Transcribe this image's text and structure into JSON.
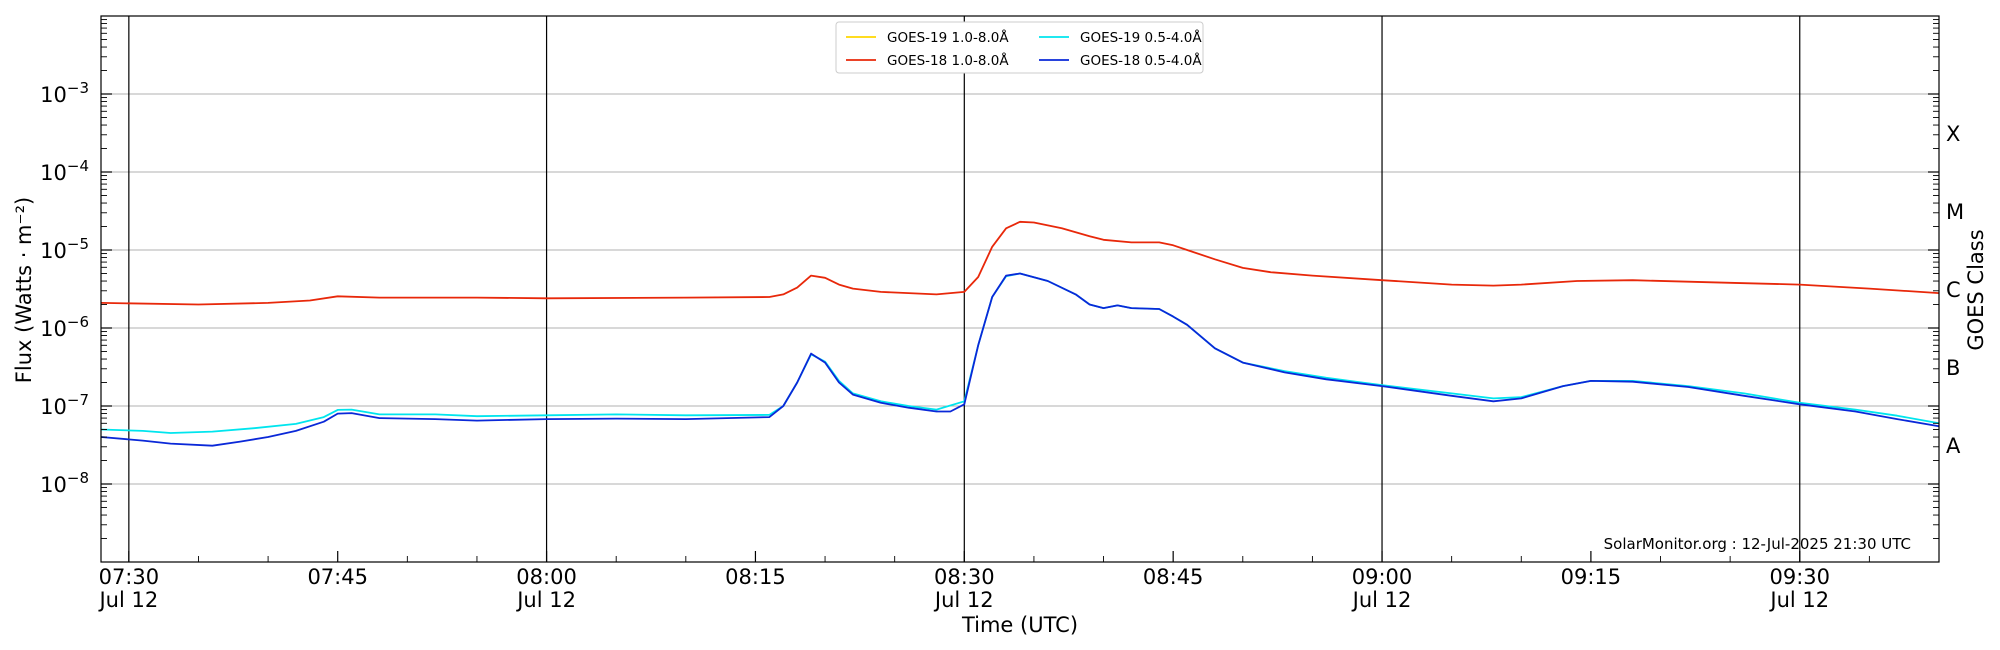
{
  "chart_data": {
    "type": "line",
    "xlabel": "Time (UTC)",
    "ylabel": "Flux (Watts · m⁻²)",
    "ylabel_right": "GOES Class",
    "scale_y": "log",
    "ylim": [
      1e-09,
      0.01
    ],
    "xlim": [
      "07:28",
      "09:40"
    ],
    "x_ticks": [
      {
        "time": "07:30",
        "label": "07:30",
        "date": "Jul 12"
      },
      {
        "time": "07:45",
        "label": "07:45",
        "date": ""
      },
      {
        "time": "08:00",
        "label": "08:00",
        "date": "Jul 12"
      },
      {
        "time": "08:15",
        "label": "08:15",
        "date": ""
      },
      {
        "time": "08:30",
        "label": "08:30",
        "date": "Jul 12"
      },
      {
        "time": "08:45",
        "label": "08:45",
        "date": ""
      },
      {
        "time": "09:00",
        "label": "09:00",
        "date": "Jul 12"
      },
      {
        "time": "09:15",
        "label": "09:15",
        "date": ""
      },
      {
        "time": "09:30",
        "label": "09:30",
        "date": "Jul 12"
      }
    ],
    "y_ticks": [
      {
        "value": 1e-08,
        "base": "10",
        "exp": "−8"
      },
      {
        "value": 1e-07,
        "base": "10",
        "exp": "−7"
      },
      {
        "value": 1e-06,
        "base": "10",
        "exp": "−6"
      },
      {
        "value": 1e-05,
        "base": "10",
        "exp": "−5"
      },
      {
        "value": 0.0001,
        "base": "10",
        "exp": "−4"
      },
      {
        "value": 0.001,
        "base": "10",
        "exp": "−3"
      }
    ],
    "goes_classes": [
      {
        "label": "A",
        "value": 3.16e-08
      },
      {
        "label": "B",
        "value": 3.16e-07
      },
      {
        "label": "C",
        "value": 3.16e-06
      },
      {
        "label": "M",
        "value": 3.16e-05
      },
      {
        "label": "X",
        "value": 0.000316
      }
    ],
    "grid": true,
    "legend_position": "top-center",
    "legend": [
      {
        "name": "GOES-19 1.0-8.0Å",
        "color": "#ffd700"
      },
      {
        "name": "GOES-18 1.0-8.0Å",
        "color": "#e8280a"
      },
      {
        "name": "GOES-19 0.5-4.0Å",
        "color": "#00e5ee"
      },
      {
        "name": "GOES-18 0.5-4.0Å",
        "color": "#0a28d8"
      }
    ],
    "series": [
      {
        "name": "GOES-19 1.0-8.0Å",
        "color": "#ffd700",
        "points": []
      },
      {
        "name": "GOES-18 1.0-8.0Å",
        "color": "#e8280a",
        "points": [
          [
            "07:28",
            2.1e-06
          ],
          [
            "07:35",
            2e-06
          ],
          [
            "07:40",
            2.1e-06
          ],
          [
            "07:43",
            2.25e-06
          ],
          [
            "07:45",
            2.55e-06
          ],
          [
            "07:48",
            2.45e-06
          ],
          [
            "07:55",
            2.45e-06
          ],
          [
            "08:00",
            2.4e-06
          ],
          [
            "08:10",
            2.45e-06
          ],
          [
            "08:16",
            2.5e-06
          ],
          [
            "08:17",
            2.7e-06
          ],
          [
            "08:18",
            3.3e-06
          ],
          [
            "08:19",
            4.7e-06
          ],
          [
            "08:20",
            4.4e-06
          ],
          [
            "08:21",
            3.6e-06
          ],
          [
            "08:22",
            3.2e-06
          ],
          [
            "08:24",
            2.9e-06
          ],
          [
            "08:26",
            2.8e-06
          ],
          [
            "08:28",
            2.7e-06
          ],
          [
            "08:30",
            2.9e-06
          ],
          [
            "08:31",
            4.5e-06
          ],
          [
            "08:32",
            1.1e-05
          ],
          [
            "08:33",
            1.9e-05
          ],
          [
            "08:34",
            2.3e-05
          ],
          [
            "08:35",
            2.25e-05
          ],
          [
            "08:37",
            1.9e-05
          ],
          [
            "08:39",
            1.5e-05
          ],
          [
            "08:40",
            1.35e-05
          ],
          [
            "08:42",
            1.25e-05
          ],
          [
            "08:44",
            1.25e-05
          ],
          [
            "08:45",
            1.15e-05
          ],
          [
            "08:46",
            1e-05
          ],
          [
            "08:48",
            7.6e-06
          ],
          [
            "08:50",
            5.9e-06
          ],
          [
            "08:52",
            5.2e-06
          ],
          [
            "08:55",
            4.7e-06
          ],
          [
            "09:00",
            4.1e-06
          ],
          [
            "09:05",
            3.6e-06
          ],
          [
            "09:08",
            3.5e-06
          ],
          [
            "09:10",
            3.6e-06
          ],
          [
            "09:14",
            4e-06
          ],
          [
            "09:18",
            4.1e-06
          ],
          [
            "09:25",
            3.8e-06
          ],
          [
            "09:30",
            3.6e-06
          ],
          [
            "09:35",
            3.2e-06
          ],
          [
            "09:40",
            2.8e-06
          ]
        ]
      },
      {
        "name": "GOES-19 0.5-4.0Å",
        "color": "#00e5ee",
        "points": [
          [
            "07:28",
            5e-08
          ],
          [
            "07:31",
            4.8e-08
          ],
          [
            "07:33",
            4.5e-08
          ],
          [
            "07:36",
            4.7e-08
          ],
          [
            "07:39",
            5.2e-08
          ],
          [
            "07:42",
            5.9e-08
          ],
          [
            "07:44",
            7.2e-08
          ],
          [
            "07:45",
            8.9e-08
          ],
          [
            "07:46",
            9e-08
          ],
          [
            "07:48",
            7.8e-08
          ],
          [
            "07:52",
            7.8e-08
          ],
          [
            "07:55",
            7.4e-08
          ],
          [
            "08:00",
            7.6e-08
          ],
          [
            "08:05",
            7.8e-08
          ],
          [
            "08:10",
            7.6e-08
          ],
          [
            "08:16",
            7.7e-08
          ],
          [
            "08:17",
            1e-07
          ],
          [
            "08:18",
            2e-07
          ],
          [
            "08:19",
            4.6e-07
          ],
          [
            "08:20",
            3.7e-07
          ],
          [
            "08:21",
            2.1e-07
          ],
          [
            "08:22",
            1.45e-07
          ],
          [
            "08:24",
            1.15e-07
          ],
          [
            "08:26",
            1e-07
          ],
          [
            "08:28",
            9e-08
          ],
          [
            "08:30",
            1.15e-07
          ],
          [
            "08:31",
            6e-07
          ],
          [
            "08:32",
            2.5e-06
          ],
          [
            "08:33",
            4.6e-06
          ],
          [
            "08:34",
            5e-06
          ],
          [
            "08:36",
            4e-06
          ],
          [
            "08:38",
            2.7e-06
          ],
          [
            "08:39",
            2e-06
          ],
          [
            "08:40",
            1.8e-06
          ],
          [
            "08:41",
            1.95e-06
          ],
          [
            "08:42",
            1.8e-06
          ],
          [
            "08:44",
            1.75e-06
          ],
          [
            "08:45",
            1.4e-06
          ],
          [
            "08:46",
            1.1e-06
          ],
          [
            "08:48",
            5.5e-07
          ],
          [
            "08:50",
            3.6e-07
          ],
          [
            "08:53",
            2.8e-07
          ],
          [
            "08:56",
            2.3e-07
          ],
          [
            "09:00",
            1.85e-07
          ],
          [
            "09:05",
            1.45e-07
          ],
          [
            "09:08",
            1.25e-07
          ],
          [
            "09:10",
            1.3e-07
          ],
          [
            "09:13",
            1.8e-07
          ],
          [
            "09:15",
            2.1e-07
          ],
          [
            "09:18",
            2.1e-07
          ],
          [
            "09:22",
            1.8e-07
          ],
          [
            "09:26",
            1.45e-07
          ],
          [
            "09:30",
            1.1e-07
          ],
          [
            "09:34",
            9e-08
          ],
          [
            "09:37",
            7.5e-08
          ],
          [
            "09:40",
            6e-08
          ]
        ]
      },
      {
        "name": "GOES-18 0.5-4.0Å",
        "color": "#0a28d8",
        "points": [
          [
            "07:28",
            4e-08
          ],
          [
            "07:31",
            3.6e-08
          ],
          [
            "07:33",
            3.3e-08
          ],
          [
            "07:36",
            3.1e-08
          ],
          [
            "07:38",
            3.5e-08
          ],
          [
            "07:40",
            4e-08
          ],
          [
            "07:42",
            4.8e-08
          ],
          [
            "07:44",
            6.3e-08
          ],
          [
            "07:45",
            8e-08
          ],
          [
            "07:46",
            8.1e-08
          ],
          [
            "07:48",
            7e-08
          ],
          [
            "07:52",
            6.8e-08
          ],
          [
            "07:55",
            6.5e-08
          ],
          [
            "08:00",
            6.8e-08
          ],
          [
            "08:05",
            6.9e-08
          ],
          [
            "08:10",
            6.8e-08
          ],
          [
            "08:16",
            7.2e-08
          ],
          [
            "08:17",
            1e-07
          ],
          [
            "08:18",
            2e-07
          ],
          [
            "08:19",
            4.7e-07
          ],
          [
            "08:20",
            3.6e-07
          ],
          [
            "08:21",
            2e-07
          ],
          [
            "08:22",
            1.4e-07
          ],
          [
            "08:24",
            1.1e-07
          ],
          [
            "08:26",
            9.5e-08
          ],
          [
            "08:28",
            8.5e-08
          ],
          [
            "08:29",
            8.5e-08
          ],
          [
            "08:30",
            1.05e-07
          ],
          [
            "08:31",
            6e-07
          ],
          [
            "08:32",
            2.5e-06
          ],
          [
            "08:33",
            4.7e-06
          ],
          [
            "08:34",
            5e-06
          ],
          [
            "08:36",
            4e-06
          ],
          [
            "08:38",
            2.7e-06
          ],
          [
            "08:39",
            2e-06
          ],
          [
            "08:40",
            1.8e-06
          ],
          [
            "08:41",
            1.95e-06
          ],
          [
            "08:42",
            1.8e-06
          ],
          [
            "08:44",
            1.75e-06
          ],
          [
            "08:45",
            1.4e-06
          ],
          [
            "08:46",
            1.1e-06
          ],
          [
            "08:48",
            5.5e-07
          ],
          [
            "08:50",
            3.6e-07
          ],
          [
            "08:53",
            2.7e-07
          ],
          [
            "08:56",
            2.2e-07
          ],
          [
            "09:00",
            1.8e-07
          ],
          [
            "09:05",
            1.35e-07
          ],
          [
            "09:08",
            1.15e-07
          ],
          [
            "09:10",
            1.25e-07
          ],
          [
            "09:13",
            1.8e-07
          ],
          [
            "09:15",
            2.1e-07
          ],
          [
            "09:18",
            2.05e-07
          ],
          [
            "09:22",
            1.75e-07
          ],
          [
            "09:26",
            1.35e-07
          ],
          [
            "09:30",
            1.05e-07
          ],
          [
            "09:34",
            8.5e-08
          ],
          [
            "09:37",
            6.8e-08
          ],
          [
            "09:40",
            5.5e-08
          ]
        ]
      }
    ],
    "vertical_markers": [
      "07:30",
      "08:00",
      "08:30",
      "09:00",
      "09:30"
    ],
    "annotation": "SolarMonitor.org : 12-Jul-2025 21:30 UTC"
  }
}
